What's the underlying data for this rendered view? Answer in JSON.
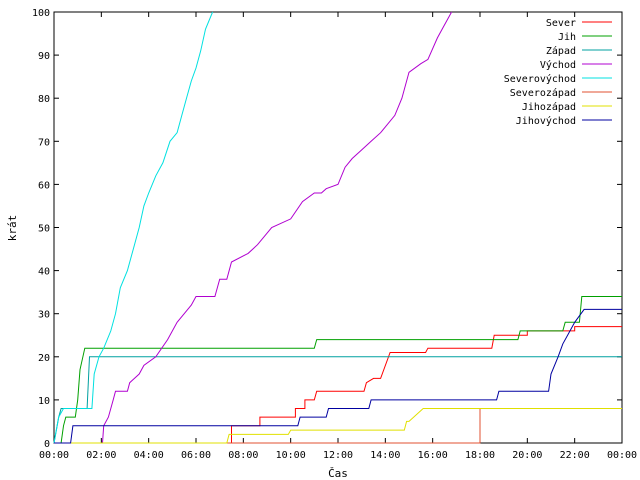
{
  "chart_data": {
    "type": "line",
    "xlabel": "Čas",
    "ylabel": "krát",
    "xlim": [
      0,
      24
    ],
    "ylim": [
      0,
      100
    ],
    "x_ticks": [
      "00:00",
      "02:00",
      "04:00",
      "06:00",
      "08:00",
      "10:00",
      "12:00",
      "14:00",
      "16:00",
      "18:00",
      "20:00",
      "22:00",
      "00:00"
    ],
    "y_ticks": [
      0,
      10,
      20,
      30,
      40,
      50,
      60,
      70,
      80,
      90,
      100
    ],
    "legend_position": "top-right",
    "series": [
      {
        "name": "Sever",
        "color": "#ff0000",
        "points": [
          [
            0,
            0
          ],
          [
            7.5,
            0
          ],
          [
            7.5,
            4
          ],
          [
            8.7,
            4
          ],
          [
            8.7,
            6
          ],
          [
            10.2,
            6
          ],
          [
            10.2,
            8
          ],
          [
            10.6,
            8
          ],
          [
            10.6,
            10
          ],
          [
            11,
            10
          ],
          [
            11.1,
            12
          ],
          [
            13.1,
            12
          ],
          [
            13.2,
            14
          ],
          [
            13.5,
            15
          ],
          [
            13.8,
            15
          ],
          [
            14.2,
            21
          ],
          [
            15.7,
            21
          ],
          [
            15.8,
            22
          ],
          [
            18.5,
            22
          ],
          [
            18.6,
            25
          ],
          [
            20,
            25
          ],
          [
            20,
            26
          ],
          [
            22,
            26
          ],
          [
            22,
            27
          ],
          [
            24,
            27
          ]
        ]
      },
      {
        "name": "Jih",
        "color": "#00a000",
        "points": [
          [
            0,
            0
          ],
          [
            0.3,
            0
          ],
          [
            0.4,
            4
          ],
          [
            0.5,
            6
          ],
          [
            0.9,
            6
          ],
          [
            1,
            10
          ],
          [
            1.1,
            17
          ],
          [
            1.3,
            22
          ],
          [
            11,
            22
          ],
          [
            11.1,
            24
          ],
          [
            19.6,
            24
          ],
          [
            19.7,
            26
          ],
          [
            21.5,
            26
          ],
          [
            21.6,
            28
          ],
          [
            22.2,
            28
          ],
          [
            22.3,
            34
          ],
          [
            24,
            34
          ]
        ]
      },
      {
        "name": "Západ",
        "color": "#00a0a0",
        "points": [
          [
            0,
            0
          ],
          [
            0.2,
            6
          ],
          [
            0.3,
            8
          ],
          [
            1.4,
            8
          ],
          [
            1.5,
            20
          ],
          [
            24,
            20
          ]
        ]
      },
      {
        "name": "Východ",
        "color": "#b000d0",
        "points": [
          [
            0,
            0
          ],
          [
            2.05,
            0
          ],
          [
            2.1,
            4
          ],
          [
            2.3,
            6
          ],
          [
            2.5,
            10
          ],
          [
            2.6,
            12
          ],
          [
            3.1,
            12
          ],
          [
            3.2,
            14
          ],
          [
            3.6,
            16
          ],
          [
            3.8,
            18
          ],
          [
            4.3,
            20
          ],
          [
            4.8,
            24
          ],
          [
            5.2,
            28
          ],
          [
            5.5,
            30
          ],
          [
            5.8,
            32
          ],
          [
            6,
            34
          ],
          [
            6.8,
            34
          ],
          [
            7,
            38
          ],
          [
            7.3,
            38
          ],
          [
            7.5,
            42
          ],
          [
            8.2,
            44
          ],
          [
            8.6,
            46
          ],
          [
            9.2,
            50
          ],
          [
            10,
            52
          ],
          [
            10.5,
            56
          ],
          [
            11,
            58
          ],
          [
            11.3,
            58
          ],
          [
            11.5,
            59
          ],
          [
            12,
            60
          ],
          [
            12.3,
            64
          ],
          [
            12.6,
            66
          ],
          [
            13,
            68
          ],
          [
            13.4,
            70
          ],
          [
            13.8,
            72
          ],
          [
            14.4,
            76
          ],
          [
            14.7,
            80
          ],
          [
            15,
            86
          ],
          [
            15.5,
            88
          ],
          [
            15.8,
            89
          ],
          [
            16.2,
            94
          ],
          [
            16.4,
            96
          ],
          [
            16.8,
            100
          ]
        ]
      },
      {
        "name": "Severovýchod",
        "color": "#00e0e0",
        "points": [
          [
            0,
            0
          ],
          [
            0.2,
            6
          ],
          [
            0.4,
            8
          ],
          [
            1.6,
            8
          ],
          [
            1.7,
            16
          ],
          [
            1.9,
            20
          ],
          [
            2.1,
            22
          ],
          [
            2.4,
            26
          ],
          [
            2.6,
            30
          ],
          [
            2.8,
            36
          ],
          [
            3.1,
            40
          ],
          [
            3.4,
            46
          ],
          [
            3.6,
            50
          ],
          [
            3.8,
            55
          ],
          [
            4,
            58
          ],
          [
            4.3,
            62
          ],
          [
            4.6,
            65
          ],
          [
            4.9,
            70
          ],
          [
            5.2,
            72
          ],
          [
            5.4,
            76
          ],
          [
            5.6,
            80
          ],
          [
            5.8,
            84
          ],
          [
            6,
            87
          ],
          [
            6.2,
            91
          ],
          [
            6.4,
            96
          ],
          [
            6.7,
            100
          ]
        ]
      },
      {
        "name": "Severozápad",
        "color": "#e05030",
        "points": [
          [
            0,
            0
          ],
          [
            18,
            0
          ],
          [
            18,
            8
          ],
          [
            24,
            8
          ]
        ]
      },
      {
        "name": "Jihozápad",
        "color": "#e0e000",
        "points": [
          [
            0,
            0
          ],
          [
            7.3,
            0
          ],
          [
            7.4,
            2
          ],
          [
            9.9,
            2
          ],
          [
            10,
            3
          ],
          [
            14.8,
            3
          ],
          [
            14.9,
            5
          ],
          [
            15,
            5
          ],
          [
            15.4,
            7
          ],
          [
            15.6,
            8
          ],
          [
            24,
            8
          ]
        ]
      },
      {
        "name": "Jihovýchod",
        "color": "#0000a0",
        "points": [
          [
            0,
            0
          ],
          [
            0.7,
            0
          ],
          [
            0.8,
            4
          ],
          [
            10.3,
            4
          ],
          [
            10.4,
            6
          ],
          [
            11.5,
            6
          ],
          [
            11.6,
            8
          ],
          [
            13.3,
            8
          ],
          [
            13.4,
            10
          ],
          [
            18.7,
            10
          ],
          [
            18.8,
            12
          ],
          [
            20.9,
            12
          ],
          [
            21,
            16
          ],
          [
            21.3,
            20
          ],
          [
            21.5,
            23
          ],
          [
            21.7,
            25
          ],
          [
            22,
            28
          ],
          [
            22.4,
            31
          ],
          [
            24,
            31
          ]
        ]
      }
    ]
  }
}
